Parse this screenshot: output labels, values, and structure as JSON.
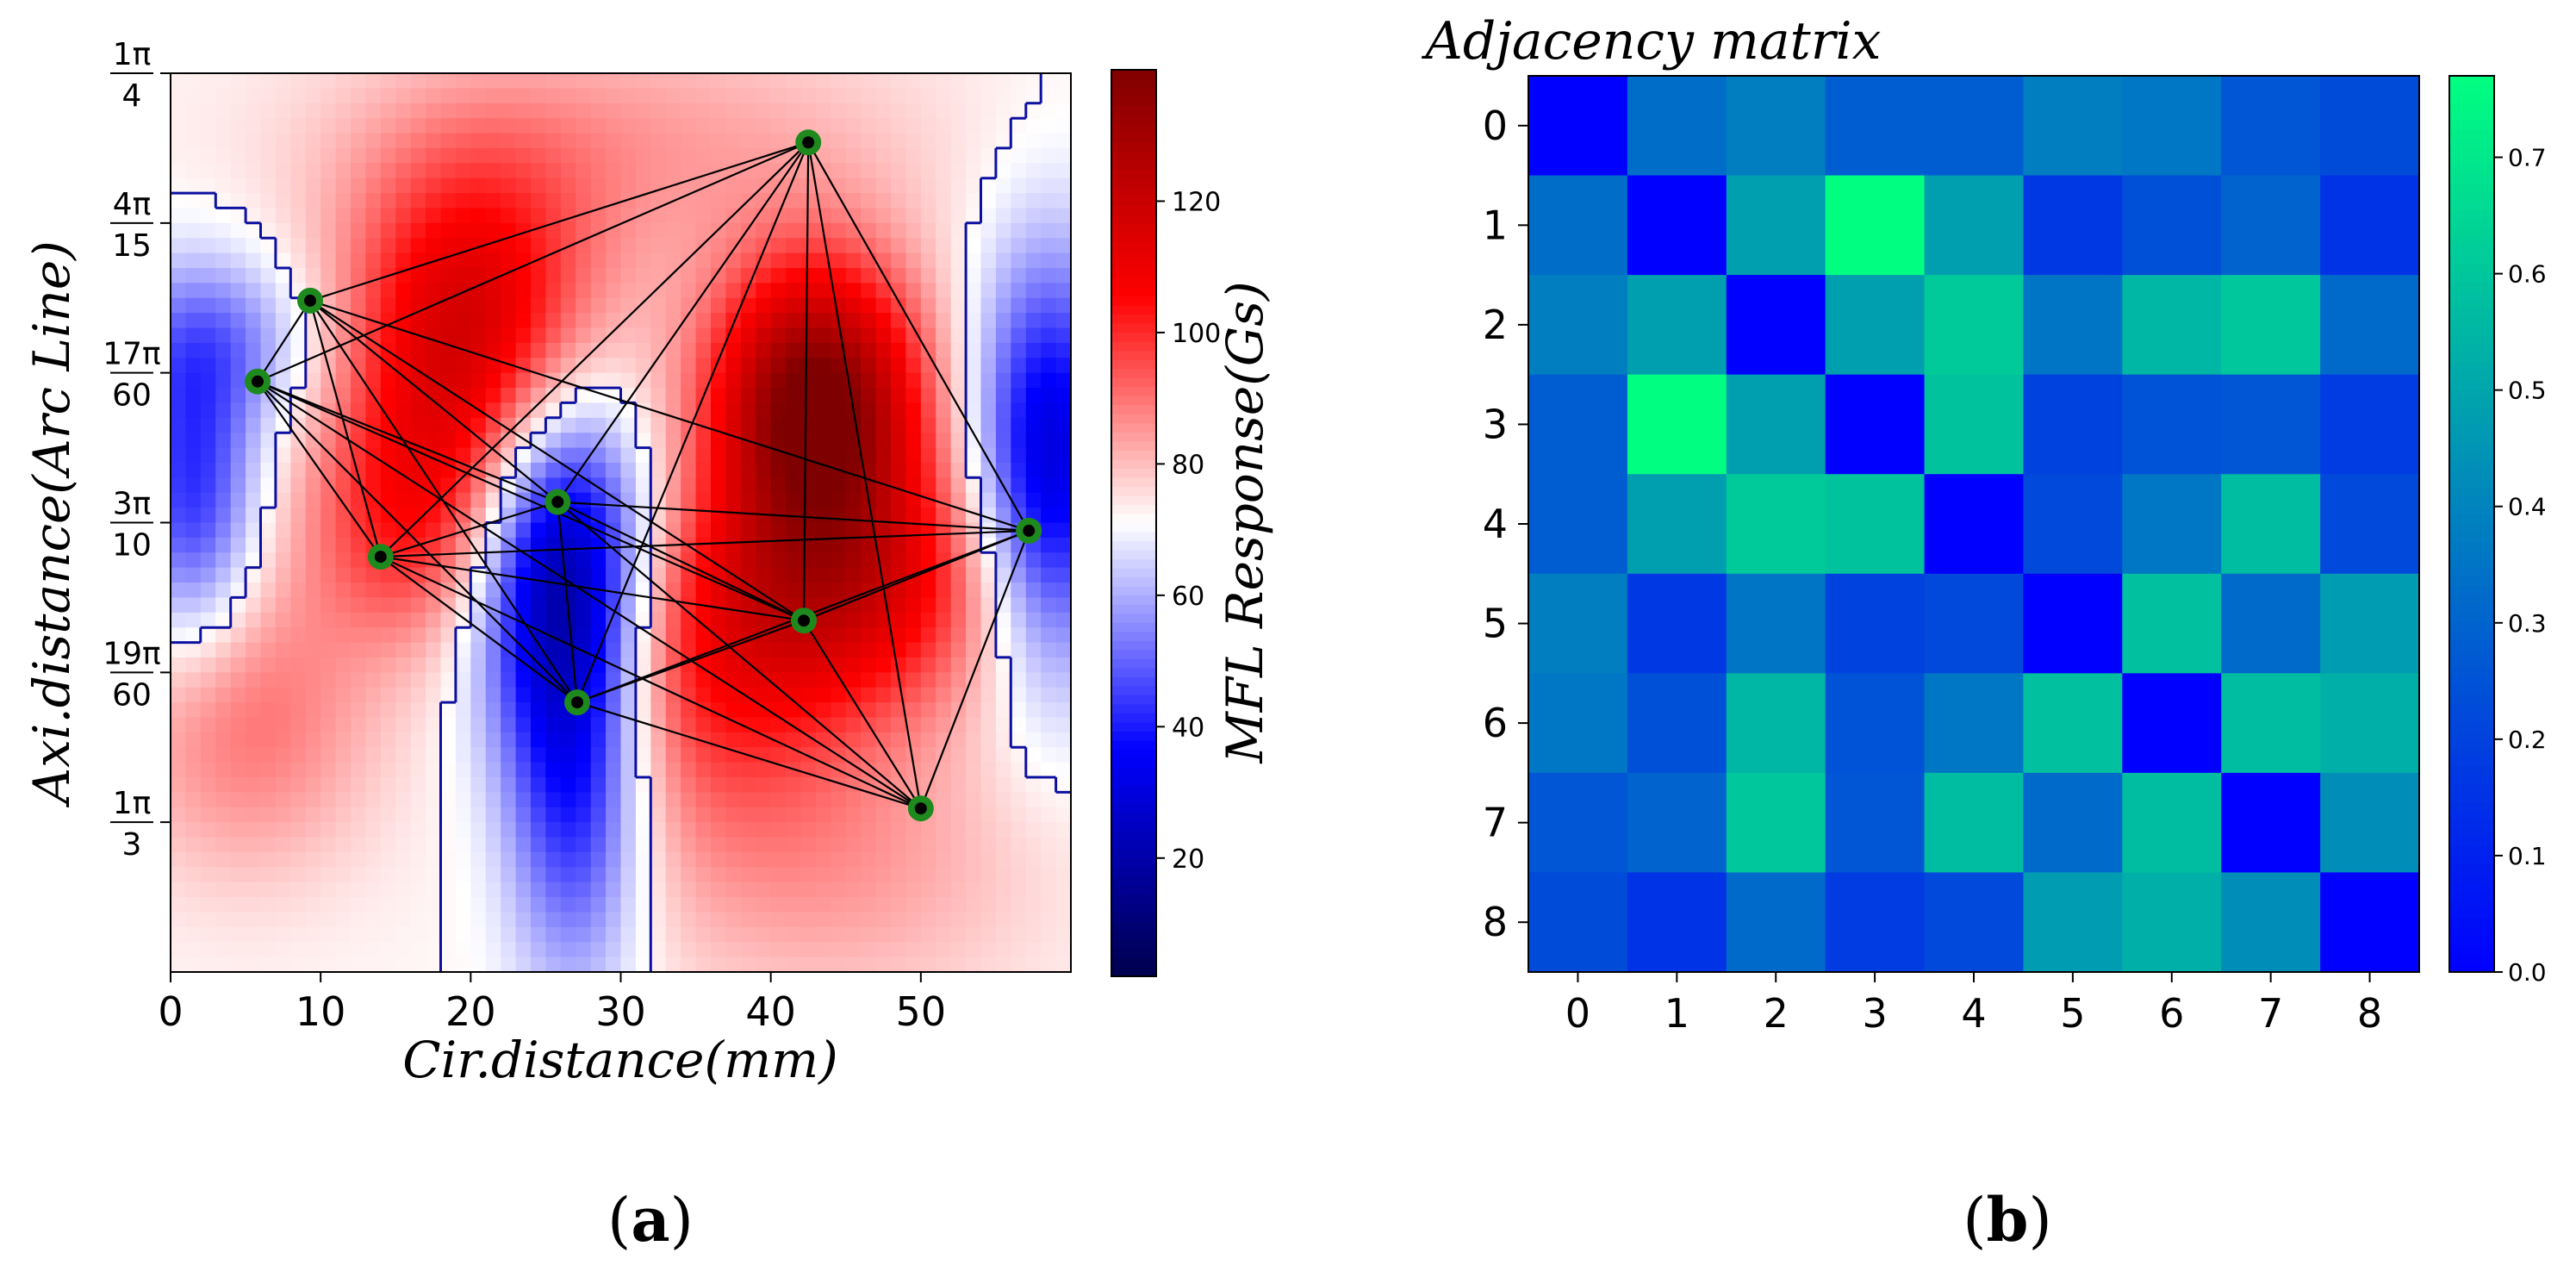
{
  "chart_data": [
    {
      "type": "heatmap",
      "subtype": "mfl-graph",
      "panel": "(a)",
      "panel_letter": "a",
      "xlabel": "Cir.distance(mm)",
      "ylabel": "Axi.distance(Arc Line)",
      "xlim": [
        0,
        60
      ],
      "ylim_top_rad": 0.25,
      "ylim_bottom_rad": 0.35,
      "x_ticks": [
        0,
        10,
        20,
        30,
        40,
        50
      ],
      "y_ticks": [
        {
          "num": "1π",
          "den": "4",
          "value": 0.25
        },
        {
          "num": "4π",
          "den": "15",
          "value": 0.26667
        },
        {
          "num": "17π",
          "den": "60",
          "value": 0.28333
        },
        {
          "num": "3π",
          "den": "10",
          "value": 0.3
        },
        {
          "num": "19π",
          "den": "60",
          "value": 0.31667
        },
        {
          "num": "1π",
          "den": "3",
          "value": 0.33333
        }
      ],
      "colorbar": {
        "label": "MFL Response(Gs)",
        "range": [
          2,
          140
        ],
        "ticks": [
          20,
          40,
          60,
          80,
          100,
          120
        ],
        "colormap": "seismic"
      },
      "field_sources": [
        {
          "x": 43,
          "y": 0.2865,
          "amp": 70,
          "sx": 5,
          "sy": 0.011
        },
        {
          "x": 20,
          "y": 0.279,
          "amp": 45,
          "sx": 6,
          "sy": 0.013
        },
        {
          "x": 16,
          "y": 0.3,
          "amp": 25,
          "sx": 5,
          "sy": 0.01
        },
        {
          "x": 45,
          "y": 0.307,
          "amp": 38,
          "sx": 8,
          "sy": 0.01
        },
        {
          "x": 36,
          "y": 0.318,
          "amp": 22,
          "sx": 7,
          "sy": 0.012
        },
        {
          "x": 26,
          "y": 0.305,
          "amp": -55,
          "sx": 4,
          "sy": 0.014
        },
        {
          "x": 27,
          "y": 0.33,
          "amp": -32,
          "sx": 3.2,
          "sy": 0.015
        },
        {
          "x": 58.5,
          "y": 0.294,
          "amp": -45,
          "sx": 3.5,
          "sy": 0.016
        },
        {
          "x": 1.5,
          "y": 0.297,
          "amp": -30,
          "sx": 3,
          "sy": 0.012
        },
        {
          "x": 3,
          "y": 0.28,
          "amp": -18,
          "sx": 5,
          "sy": 0.007
        },
        {
          "x": 30,
          "y": 0.258,
          "amp": 12,
          "sx": 14,
          "sy": 0.01
        },
        {
          "x": 5,
          "y": 0.322,
          "amp": 18,
          "sx": 6,
          "sy": 0.012
        },
        {
          "x": 44,
          "y": 0.338,
          "amp": 12,
          "sx": 10,
          "sy": 0.012
        }
      ],
      "field_base": 72,
      "nodes": [
        {
          "id": 0,
          "x": 42.5,
          "y": 0.2577
        },
        {
          "id": 1,
          "x": 9.3,
          "y": 0.2753
        },
        {
          "id": 2,
          "x": 5.8,
          "y": 0.2843
        },
        {
          "id": 3,
          "x": 25.8,
          "y": 0.2977
        },
        {
          "id": 4,
          "x": 57.2,
          "y": 0.3009
        },
        {
          "id": 5,
          "x": 14,
          "y": 0.3038
        },
        {
          "id": 6,
          "x": 42.2,
          "y": 0.3109
        },
        {
          "id": 7,
          "x": 27.1,
          "y": 0.32
        },
        {
          "id": 8,
          "x": 50,
          "y": 0.3318
        }
      ],
      "edges": [
        [
          0,
          1
        ],
        [
          0,
          2
        ],
        [
          0,
          3
        ],
        [
          0,
          5
        ],
        [
          0,
          6
        ],
        [
          0,
          7
        ],
        [
          0,
          8
        ],
        [
          0,
          4
        ],
        [
          1,
          2
        ],
        [
          1,
          3
        ],
        [
          1,
          5
        ],
        [
          1,
          6
        ],
        [
          1,
          7
        ],
        [
          1,
          4
        ],
        [
          2,
          3
        ],
        [
          2,
          5
        ],
        [
          2,
          6
        ],
        [
          2,
          7
        ],
        [
          2,
          8
        ],
        [
          3,
          5
        ],
        [
          3,
          6
        ],
        [
          3,
          7
        ],
        [
          3,
          8
        ],
        [
          3,
          4
        ],
        [
          4,
          5
        ],
        [
          4,
          6
        ],
        [
          4,
          7
        ],
        [
          4,
          8
        ],
        [
          5,
          6
        ],
        [
          5,
          7
        ],
        [
          5,
          8
        ],
        [
          6,
          7
        ],
        [
          6,
          8
        ],
        [
          7,
          8
        ]
      ]
    },
    {
      "type": "heatmap",
      "panel": "(b)",
      "panel_letter": "b",
      "title": "Adjacency matrix",
      "x_ticks": [
        0,
        1,
        2,
        3,
        4,
        5,
        6,
        7,
        8
      ],
      "y_ticks": [
        0,
        1,
        2,
        3,
        4,
        5,
        6,
        7,
        8
      ],
      "colorbar": {
        "range": [
          0,
          0.77
        ],
        "ticks": [
          "0.0",
          "0.1",
          "0.2",
          "0.3",
          "0.4",
          "0.5",
          "0.6",
          "0.7"
        ],
        "colormap": "winter"
      },
      "values": [
        [
          0.0,
          0.33,
          0.38,
          0.28,
          0.28,
          0.38,
          0.36,
          0.26,
          0.23
        ],
        [
          0.33,
          0.0,
          0.48,
          0.77,
          0.48,
          0.17,
          0.24,
          0.3,
          0.15
        ],
        [
          0.38,
          0.48,
          0.0,
          0.48,
          0.61,
          0.35,
          0.55,
          0.6,
          0.32
        ],
        [
          0.28,
          0.77,
          0.48,
          0.0,
          0.59,
          0.2,
          0.25,
          0.26,
          0.18
        ],
        [
          0.28,
          0.48,
          0.61,
          0.59,
          0.0,
          0.22,
          0.36,
          0.57,
          0.22
        ],
        [
          0.38,
          0.17,
          0.35,
          0.2,
          0.22,
          0.0,
          0.58,
          0.32,
          0.47
        ],
        [
          0.36,
          0.24,
          0.55,
          0.25,
          0.36,
          0.58,
          0.0,
          0.57,
          0.53
        ],
        [
          0.26,
          0.3,
          0.6,
          0.26,
          0.57,
          0.32,
          0.57,
          0.0,
          0.43
        ],
        [
          0.23,
          0.15,
          0.32,
          0.18,
          0.22,
          0.47,
          0.53,
          0.43,
          0.0
        ]
      ]
    }
  ]
}
